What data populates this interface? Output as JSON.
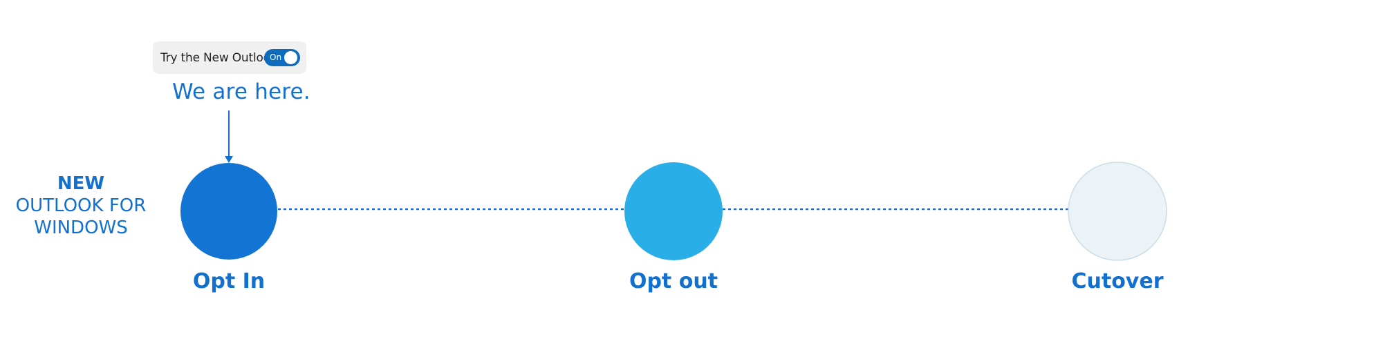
{
  "toggle": {
    "label": "Try the New Outlook",
    "state": "On",
    "color": "#0f6cbd"
  },
  "marker": {
    "text": "We are here."
  },
  "brand": {
    "line1": "NEW",
    "line2": "OUTLOOK FOR",
    "line3": "WINDOWS"
  },
  "stages": [
    {
      "label": "Opt In",
      "color": "#1275d3",
      "status": "current"
    },
    {
      "label": "Opt out",
      "color": "#2aaee8",
      "status": "upcoming"
    },
    {
      "label": "Cutover",
      "color": "#ebf3f6",
      "status": "future"
    }
  ],
  "colors": {
    "accent": "#1270cf",
    "connector": "#1270cf",
    "future_border": "#c9dde7"
  }
}
